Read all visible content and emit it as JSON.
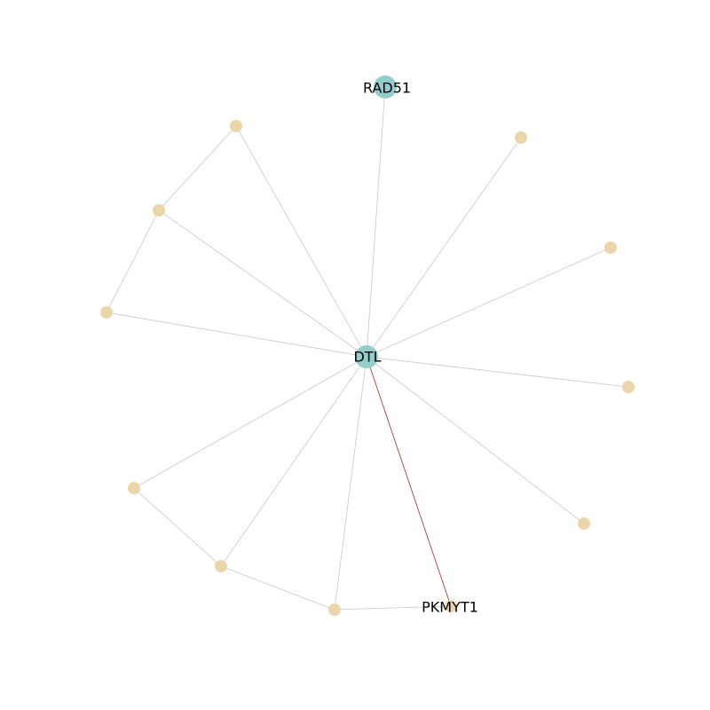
{
  "colors": {
    "hub_node": "#94CECC",
    "leaf_node": "#EBD6AA",
    "edge_default": "#C8C8C8",
    "edge_highlight": "#A52A2A"
  },
  "labels": {
    "hub": "DTL",
    "rad51": "RAD51",
    "pkmyt1": "PKMYT1"
  }
}
